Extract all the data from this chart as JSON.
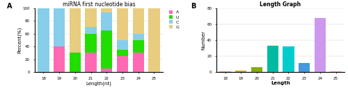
{
  "panel_A": {
    "title": "miRNA first nucleotide bias",
    "xlabel": "Length(nt)",
    "ylabel": "Percent(%)",
    "categories": [
      18,
      19,
      20,
      21,
      22,
      23,
      24,
      25
    ],
    "A": [
      0,
      40,
      0,
      30,
      5,
      25,
      30,
      0
    ],
    "U": [
      0,
      0,
      30,
      30,
      60,
      10,
      20,
      0
    ],
    "C": [
      100,
      60,
      0,
      10,
      28,
      15,
      10,
      0
    ],
    "G": [
      0,
      0,
      70,
      30,
      7,
      50,
      40,
      100
    ],
    "colors": {
      "A": "#FF69B4",
      "U": "#22DD00",
      "C": "#87CEEB",
      "G": "#E8CC80"
    },
    "ylim": [
      0,
      100
    ],
    "yticks": [
      0,
      20,
      40,
      60,
      80,
      100
    ],
    "bg_color": "#FFFFFF"
  },
  "panel_B": {
    "title": "Length Graph",
    "xlabel": "Length",
    "ylabel": "Number",
    "categories": [
      18,
      19,
      20,
      21,
      22,
      23,
      24,
      25
    ],
    "values": [
      1,
      2,
      6,
      33,
      32,
      11,
      68,
      1
    ],
    "colors": [
      "#FF9090",
      "#CCAA00",
      "#88AA10",
      "#00BBA0",
      "#00CCCC",
      "#4499DD",
      "#CC99EE",
      "#FF99BB"
    ],
    "ylim": [
      0,
      80
    ],
    "yticks": [
      0,
      20,
      40,
      60,
      80
    ]
  }
}
